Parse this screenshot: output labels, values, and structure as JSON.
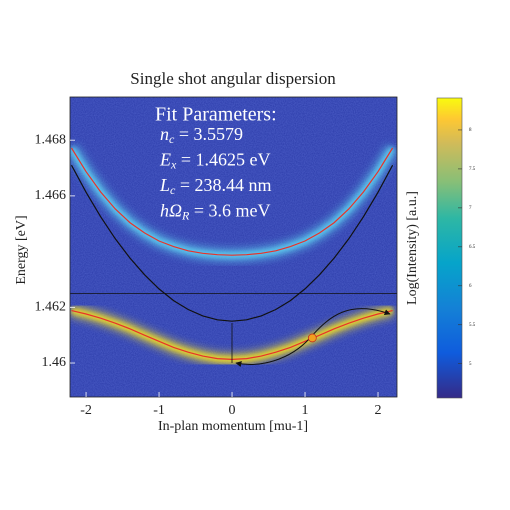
{
  "chart_data": {
    "type": "heatmap-dispersion",
    "title": "Single shot angular dispersion",
    "xlabel": "In-plan momentum [mu-1]",
    "ylabel": "Energy [eV]",
    "colorbar_label": "Log(Intensity) [a.u.]",
    "annotations": {
      "heading": "Fit Parameters:",
      "params": [
        {
          "symbol": "n",
          "sub": "c",
          "text": " = 3.5579"
        },
        {
          "symbol": "E",
          "sub": "x",
          "text": " = 1.4625 eV"
        },
        {
          "symbol": "L",
          "sub": "c",
          "text": " = 238.44 nm"
        },
        {
          "symbol": "hΩ",
          "sub": "R",
          "text": " = 3.6 meV"
        }
      ]
    },
    "x": [
      -2.2,
      -2.0,
      -1.8,
      -1.6,
      -1.4,
      -1.2,
      -1.0,
      -0.8,
      -0.6,
      -0.4,
      -0.2,
      0,
      0.2,
      0.4,
      0.6,
      0.8,
      1.0,
      1.2,
      1.4,
      1.6,
      1.8,
      2.0,
      2.2
    ],
    "series": [
      {
        "color": "#e8322a",
        "glow": "#f4e020",
        "values": [
          1.46188,
          1.46176,
          1.46161,
          1.46143,
          1.46123,
          1.461,
          1.46078,
          1.46056,
          1.46039,
          1.46025,
          1.46016,
          1.46013,
          1.46016,
          1.46025,
          1.46039,
          1.46056,
          1.46078,
          1.461,
          1.46123,
          1.46143,
          1.46161,
          1.46176,
          1.46188
        ]
      },
      {
        "color": "#e8322a",
        "glow": "#5fd0f0",
        "values": [
          1.46772,
          1.46687,
          1.46614,
          1.46553,
          1.46504,
          1.46467,
          1.46438,
          1.46418,
          1.46403,
          1.46394,
          1.46389,
          1.46387,
          1.46389,
          1.46394,
          1.46403,
          1.46418,
          1.46438,
          1.46467,
          1.46504,
          1.46553,
          1.46614,
          1.46687,
          1.46772
        ]
      },
      {
        "color": "#111111",
        "values": [
          1.4671,
          1.46613,
          1.46525,
          1.46446,
          1.46377,
          1.46317,
          1.46266,
          1.46224,
          1.46192,
          1.46169,
          1.46155,
          1.4615,
          1.46155,
          1.46169,
          1.46192,
          1.46224,
          1.46266,
          1.46317,
          1.46377,
          1.46446,
          1.46525,
          1.46613,
          1.4671
        ]
      }
    ],
    "hline": 1.4625,
    "point": {
      "x": 1.1,
      "y": 1.4609,
      "color": "#f2a020"
    },
    "xlim": [
      -2.22,
      2.26
    ],
    "ylim": [
      1.45878,
      1.46955
    ],
    "xticks": [
      -2,
      -1,
      0,
      1,
      2
    ],
    "yticks": [
      {
        "value": 1.46,
        "label": "1.46"
      },
      1.462,
      1.466,
      1.468
    ],
    "clim": [
      4.56,
      8.41
    ],
    "cticks": [
      5,
      5.5,
      6,
      6.5,
      7,
      7.5,
      8
    ]
  }
}
